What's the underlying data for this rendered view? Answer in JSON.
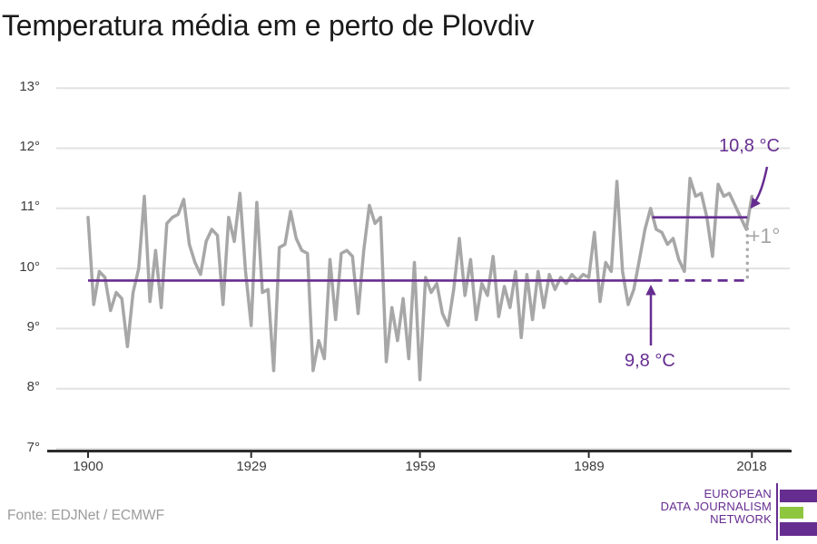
{
  "title": "Temperatura média em e perto de Plovdiv",
  "source": "Fonte: EDJNet / ECMWF",
  "colors": {
    "accent": "#662d91",
    "green": "#8ec63f",
    "line": "#a7a7a7",
    "grid": "#e2e2e2",
    "axis": "#2d2d2d",
    "dotted_connector": "#ababab",
    "muted_text": "#9b9b9b"
  },
  "logo": {
    "lines": [
      "EUROPEAN",
      "DATA JOURNALISM",
      "NETWORK"
    ]
  },
  "chart_data": {
    "type": "line",
    "title": "Temperatura média em e perto de Plovdiv",
    "unit": "°C",
    "grid": true,
    "legend": "none",
    "xlim": [
      1900,
      2018
    ],
    "ylim": [
      7,
      13
    ],
    "xticks": [
      {
        "value": 1900,
        "label": "1900"
      },
      {
        "value": 1929,
        "label": "1929"
      },
      {
        "value": 1959,
        "label": "1959"
      },
      {
        "value": 1989,
        "label": "1989"
      },
      {
        "value": 2018,
        "label": "2018"
      }
    ],
    "yticks": [
      {
        "value": 13,
        "label": "13°"
      },
      {
        "value": 12,
        "label": "12°"
      },
      {
        "value": 11,
        "label": "11°"
      },
      {
        "value": 10,
        "label": "10°"
      },
      {
        "value": 9,
        "label": "9°"
      },
      {
        "value": 8,
        "label": "8°"
      },
      {
        "value": 7,
        "label": "7°"
      }
    ],
    "years": [
      1900,
      1901,
      1902,
      1903,
      1904,
      1905,
      1906,
      1907,
      1908,
      1909,
      1910,
      1911,
      1912,
      1913,
      1914,
      1915,
      1916,
      1917,
      1918,
      1919,
      1920,
      1921,
      1922,
      1923,
      1924,
      1925,
      1926,
      1927,
      1928,
      1929,
      1930,
      1931,
      1932,
      1933,
      1934,
      1935,
      1936,
      1937,
      1938,
      1939,
      1940,
      1941,
      1942,
      1943,
      1944,
      1945,
      1946,
      1947,
      1948,
      1949,
      1950,
      1951,
      1952,
      1953,
      1954,
      1955,
      1956,
      1957,
      1958,
      1959,
      1960,
      1961,
      1962,
      1963,
      1964,
      1965,
      1966,
      1967,
      1968,
      1969,
      1970,
      1971,
      1972,
      1973,
      1974,
      1975,
      1976,
      1977,
      1978,
      1979,
      1980,
      1981,
      1982,
      1983,
      1984,
      1985,
      1986,
      1987,
      1988,
      1989,
      1990,
      1991,
      1992,
      1993,
      1994,
      1995,
      1996,
      1997,
      1998,
      1999,
      2000,
      2001,
      2002,
      2003,
      2004,
      2005,
      2006,
      2007,
      2008,
      2009,
      2010,
      2011,
      2012,
      2013,
      2014,
      2015,
      2016,
      2017,
      2018
    ],
    "values": [
      10.85,
      9.4,
      9.95,
      9.85,
      9.3,
      9.6,
      9.5,
      8.7,
      9.6,
      10.0,
      11.2,
      9.45,
      10.3,
      9.35,
      10.75,
      10.85,
      10.9,
      11.15,
      10.4,
      10.1,
      9.9,
      10.45,
      10.65,
      10.55,
      9.4,
      10.85,
      10.45,
      11.25,
      9.95,
      9.05,
      11.1,
      9.6,
      9.65,
      8.3,
      10.35,
      10.4,
      10.95,
      10.5,
      10.3,
      10.25,
      8.3,
      8.8,
      8.5,
      10.15,
      9.15,
      10.25,
      10.3,
      10.2,
      9.25,
      10.3,
      11.05,
      10.75,
      10.85,
      8.45,
      9.35,
      8.8,
      9.5,
      8.5,
      10.1,
      8.15,
      9.85,
      9.6,
      9.75,
      9.25,
      9.05,
      9.65,
      10.5,
      9.55,
      10.15,
      9.15,
      9.75,
      9.55,
      10.2,
      9.2,
      9.7,
      9.35,
      9.95,
      8.85,
      9.9,
      9.15,
      9.95,
      9.35,
      9.9,
      9.65,
      9.85,
      9.75,
      9.9,
      9.8,
      9.9,
      9.85,
      10.6,
      9.45,
      10.1,
      9.95,
      11.45,
      9.95,
      9.4,
      9.65,
      10.15,
      10.65,
      11.0,
      10.65,
      10.6,
      10.4,
      10.5,
      10.15,
      9.95,
      11.5,
      11.2,
      11.25,
      10.85,
      10.2,
      11.4,
      11.2,
      11.25,
      11.05,
      10.85,
      10.65,
      11.2
    ],
    "reference_lines": [
      {
        "value": 9.8,
        "label": "9,8 °C",
        "solid_span": [
          1900,
          2000.3
        ],
        "dashed_span": [
          2000.3,
          2017.2
        ]
      },
      {
        "value": 10.85,
        "label": "10,8 °C",
        "solid_span": [
          2000.3,
          2017.2
        ]
      }
    ],
    "delta": {
      "x": 2017.2,
      "from": 9.8,
      "to": 10.85,
      "label": "+1°"
    }
  }
}
